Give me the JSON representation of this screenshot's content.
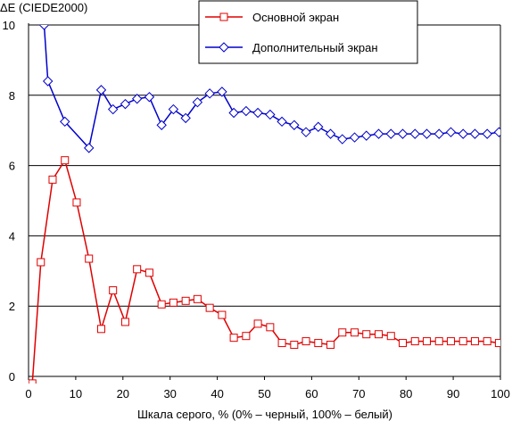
{
  "chart_data": {
    "type": "line",
    "ylabel": "ΔE (CIEDE2000)",
    "xlabel": "Шкала серого, % (0% – черный, 100% – белый)",
    "xlim": [
      0,
      100
    ],
    "ylim": [
      0,
      10
    ],
    "x_ticks": [
      0,
      10,
      20,
      30,
      40,
      50,
      60,
      70,
      80,
      90,
      100
    ],
    "y_ticks": [
      0,
      2,
      4,
      6,
      8,
      10
    ],
    "x_tick_labels": [
      "0",
      "10",
      "20",
      "30",
      "40",
      "50",
      "60",
      "70",
      "80",
      "90",
      "100"
    ],
    "y_tick_labels": [
      "0",
      "2",
      "4",
      "6",
      "8",
      "10"
    ],
    "grid": "horizontal",
    "legend_position": "top-right",
    "series": [
      {
        "name": "Основной экран",
        "color": "#e00000",
        "marker": "square",
        "x": [
          0.8,
          2.6,
          7.7,
          12.8,
          17.9,
          23.0,
          28.2,
          33.3,
          38.4,
          43.5,
          48.6,
          53.7,
          58.8,
          64.0,
          69.1,
          74.2,
          79.3,
          84.4,
          89.5,
          94.6,
          99.7
        ],
        "y": [
          -0.2,
          3.25,
          5.6,
          4.95,
          3.35,
          2.45,
          1.55,
          2.05,
          2.1,
          2.2,
          1.95,
          1.1,
          1.15,
          1.4,
          0.95,
          1.0,
          0.95,
          1.25,
          1.2,
          1.15,
          0.95
        ],
        "x_full": [
          0.8,
          2.6,
          5.1,
          7.7,
          10.2,
          12.8,
          15.4,
          17.9,
          20.5,
          23.0,
          25.6,
          28.2,
          30.7,
          33.3,
          35.8,
          38.4,
          41.0,
          43.5,
          46.1,
          48.6,
          51.2,
          53.7,
          56.3,
          58.8,
          61.4,
          64.0,
          66.5,
          69.1,
          71.6,
          74.2,
          76.8,
          79.3,
          81.9,
          84.4,
          87.0,
          89.5,
          92.1,
          94.6,
          97.2,
          99.7
        ],
        "y_full": [
          -0.2,
          3.25,
          5.6,
          6.15,
          4.95,
          3.35,
          1.35,
          2.45,
          1.55,
          3.05,
          2.95,
          2.05,
          2.1,
          2.15,
          2.2,
          1.95,
          1.75,
          1.1,
          1.15,
          1.5,
          1.4,
          0.95,
          0.9,
          1.0,
          0.95,
          0.9,
          1.25,
          1.25,
          1.2,
          1.2,
          1.15,
          0.95,
          1.0,
          1.0,
          1.0,
          1.0,
          1.0,
          1.0,
          1.0,
          0.95
        ]
      },
      {
        "name": "Дополнительный экран",
        "color": "#0000cc",
        "marker": "diamond",
        "x_full": [
          3.3,
          4.1,
          7.7,
          12.8,
          15.4,
          17.9,
          20.5,
          23.0,
          25.6,
          28.2,
          30.7,
          33.3,
          35.8,
          38.4,
          41.0,
          43.5,
          46.1,
          48.6,
          51.2,
          53.7,
          56.3,
          58.8,
          61.4,
          64.0,
          66.5,
          69.1,
          71.6,
          74.2,
          76.8,
          79.3,
          81.9,
          84.4,
          87.0,
          89.5,
          92.1,
          94.6,
          97.2,
          99.7
        ],
        "y_full": [
          10.0,
          8.4,
          7.25,
          6.5,
          8.15,
          7.6,
          7.75,
          7.9,
          7.95,
          7.15,
          7.6,
          7.35,
          7.8,
          8.05,
          8.1,
          7.5,
          7.55,
          7.5,
          7.45,
          7.25,
          7.15,
          6.95,
          7.1,
          6.9,
          6.75,
          6.8,
          6.85,
          6.9,
          6.9,
          6.9,
          6.9,
          6.9,
          6.9,
          6.95,
          6.9,
          6.9,
          6.9,
          6.95
        ]
      }
    ]
  }
}
